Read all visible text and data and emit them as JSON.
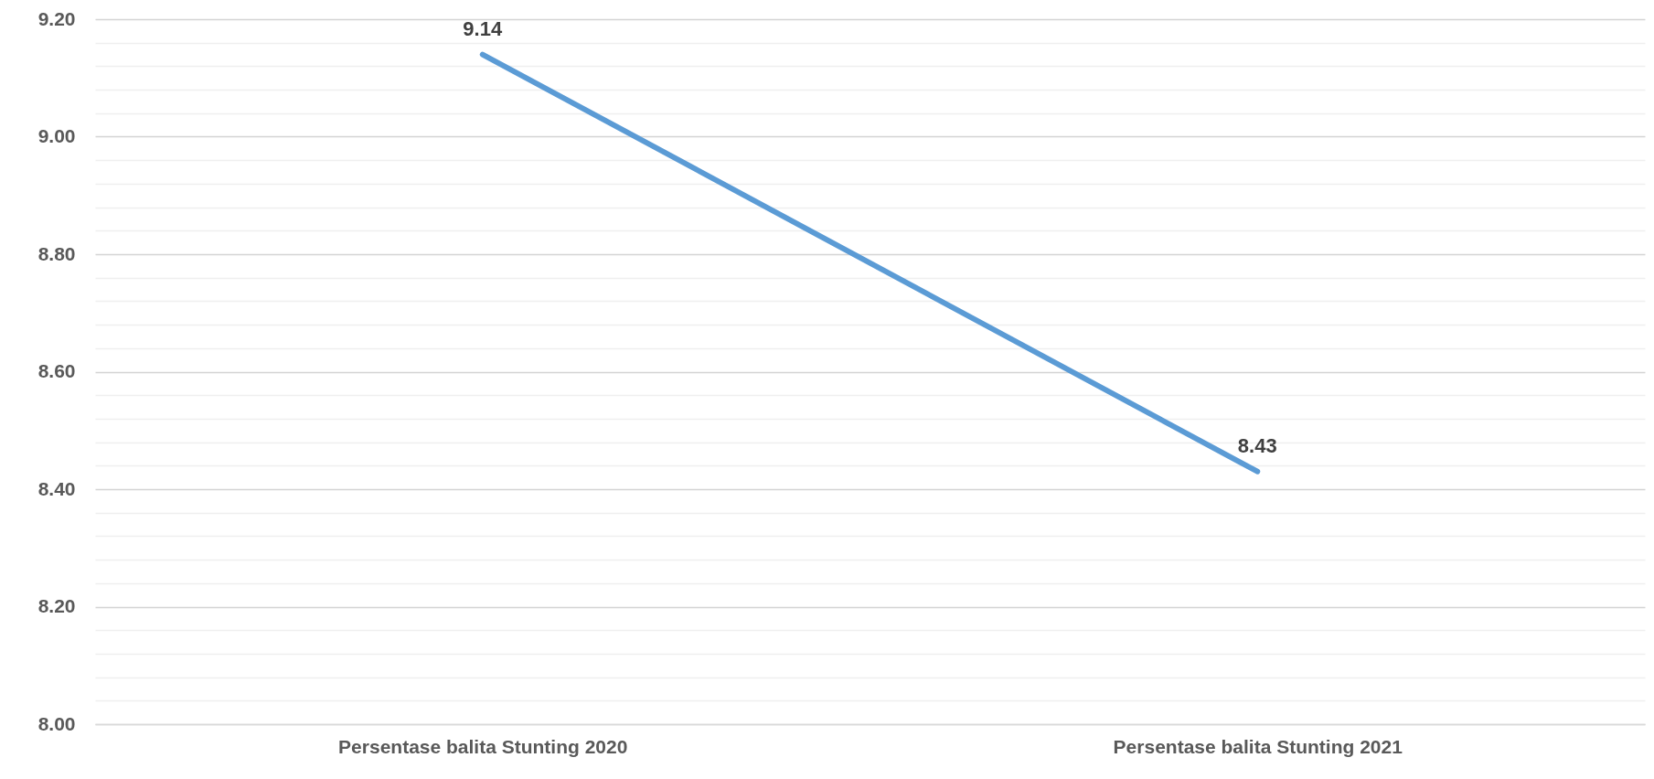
{
  "chart_data": {
    "type": "line",
    "categories": [
      "Persentase balita Stunting 2020",
      "Persentase balita Stunting 2021"
    ],
    "series": [
      {
        "color": "#5b9bd5",
        "values": [
          9.14,
          8.43
        ]
      }
    ],
    "ylim": [
      8.0,
      9.2
    ],
    "yticks": [
      {
        "value": 8.0,
        "label": "8.00"
      },
      {
        "value": 8.04,
        "label": null
      },
      {
        "value": 8.08,
        "label": null
      },
      {
        "value": 8.12,
        "label": null
      },
      {
        "value": 8.16,
        "label": null
      },
      {
        "value": 8.2,
        "label": "8.20"
      },
      {
        "value": 8.24,
        "label": null
      },
      {
        "value": 8.28,
        "label": null
      },
      {
        "value": 8.32,
        "label": null
      },
      {
        "value": 8.36,
        "label": null
      },
      {
        "value": 8.4,
        "label": "8.40"
      },
      {
        "value": 8.44,
        "label": null
      },
      {
        "value": 8.48,
        "label": null
      },
      {
        "value": 8.52,
        "label": null
      },
      {
        "value": 8.56,
        "label": null
      },
      {
        "value": 8.6,
        "label": "8.60"
      },
      {
        "value": 8.64,
        "label": null
      },
      {
        "value": 8.68,
        "label": null
      },
      {
        "value": 8.72,
        "label": null
      },
      {
        "value": 8.76,
        "label": null
      },
      {
        "value": 8.8,
        "label": "8.80"
      },
      {
        "value": 8.84,
        "label": null
      },
      {
        "value": 8.88,
        "label": null
      },
      {
        "value": 8.92,
        "label": null
      },
      {
        "value": 8.96,
        "label": null
      },
      {
        "value": 9.0,
        "label": "9.00"
      },
      {
        "value": 9.04,
        "label": null
      },
      {
        "value": 9.08,
        "label": null
      },
      {
        "value": 9.12,
        "label": null
      },
      {
        "value": 9.16,
        "label": null
      },
      {
        "value": 9.2,
        "label": "9.20"
      }
    ],
    "grid": "y",
    "data_labels": true,
    "marker": "none",
    "line_style": "solid",
    "legend": false
  }
}
